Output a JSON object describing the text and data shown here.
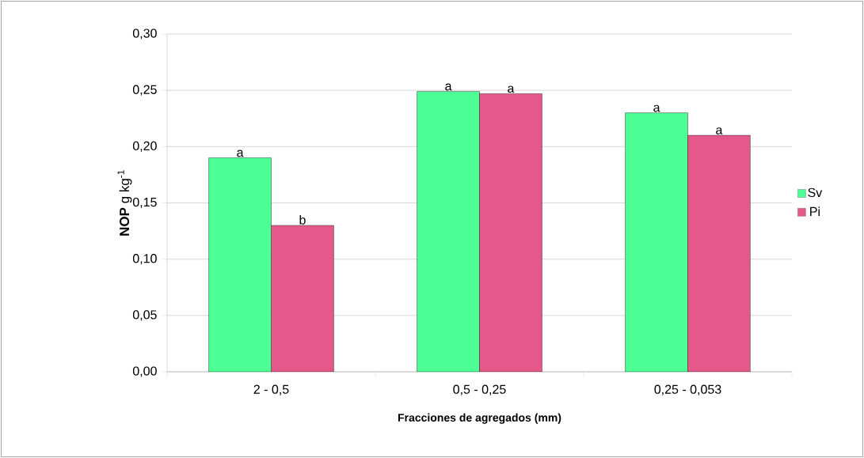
{
  "chart_data": {
    "type": "bar",
    "xlabel": "Fracciones de agregados (mm)",
    "ylabel": "**NOP** g kg$^{-1}$",
    "categories": [
      "2 - 0,5",
      "0,5 - 0,25",
      "0,25 - 0,053"
    ],
    "series": [
      {
        "name": "Sv",
        "color": "#4dff94",
        "values": [
          0.19,
          0.249,
          0.23
        ]
      },
      {
        "name": "Pi",
        "color": "#e5598a",
        "values": [
          0.13,
          0.247,
          0.21
        ]
      }
    ],
    "ylim": [
      0,
      0.3
    ],
    "yticks": [
      {
        "value": 0,
        "label": "0,00"
      },
      {
        "value": 0.05,
        "label": "0,05"
      },
      {
        "value": 0.1,
        "label": "0,10"
      },
      {
        "value": 0.15,
        "label": "0,15"
      },
      {
        "value": 0.2,
        "label": "0,20"
      },
      {
        "value": 0.25,
        "label": "0,25"
      },
      {
        "value": 0.3,
        "label": "0,30"
      }
    ],
    "grid": "y",
    "legend": "right",
    "annotations": [
      {
        "text": "a",
        "x": "2 - 0,5",
        "y": 0.19
      },
      {
        "text": "b",
        "x": "2 - 0,5",
        "y": 0.13
      },
      {
        "text": "a",
        "x": "0,5 - 0,25",
        "y": 0.249
      },
      {
        "text": "a",
        "x": "0,5 - 0,25",
        "y": 0.247
      },
      {
        "text": "a",
        "x": "0,25 - 0,053",
        "y": 0.23
      },
      {
        "text": "a",
        "x": "0,25 - 0,053",
        "y": 0.21
      }
    ]
  }
}
